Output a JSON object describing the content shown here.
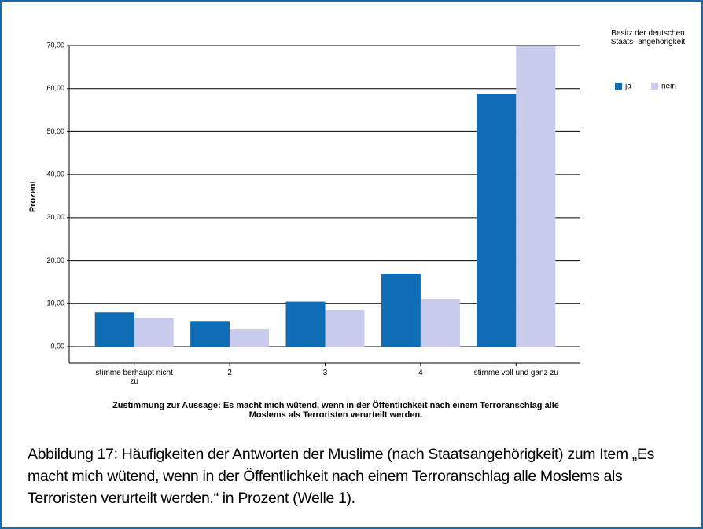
{
  "chart_data": {
    "type": "bar",
    "y_label": "Prozent",
    "x_label": "Zustimmung zur Aussage: Es macht mich wütend, wenn in der Öffentlichkeit nach einem Terroranschlag alle Moslems als Terroristen verurteilt werden.",
    "legend_title": "Besitz der deutschen Staats- angehörigkeit",
    "categories": [
      "stimme  berhaupt nicht zu",
      "2",
      "3",
      "4",
      "stimme voll und ganz zu"
    ],
    "series": [
      {
        "name": "ja",
        "color": "#0f6db5",
        "values": [
          8.0,
          5.8,
          10.5,
          17.0,
          58.8
        ]
      },
      {
        "name": "nein",
        "color": "#c8cbec",
        "values": [
          6.7,
          4.0,
          8.5,
          11.0,
          70.0
        ]
      }
    ],
    "ylim": [
      0,
      70
    ],
    "yticks": [
      {
        "value": 0,
        "label": "0,00"
      },
      {
        "value": 10,
        "label": "10,00"
      },
      {
        "value": 20,
        "label": "20,00"
      },
      {
        "value": 30,
        "label": "30,00"
      },
      {
        "value": 40,
        "label": "40,00"
      },
      {
        "value": 50,
        "label": "50,00"
      },
      {
        "value": 60,
        "label": "60,00"
      },
      {
        "value": 70,
        "label": "70,00"
      }
    ],
    "grid": true
  },
  "caption": "Abbildung 17: Häufigkeiten der Antworten der Muslime (nach Staatsangehörigkeit) zum Item „Es macht mich wütend, wenn in der Öffentlichkeit nach einem Terror­anschlag alle Moslems als Terroristen verurteilt werden.“ in Prozent (Welle 1)."
}
